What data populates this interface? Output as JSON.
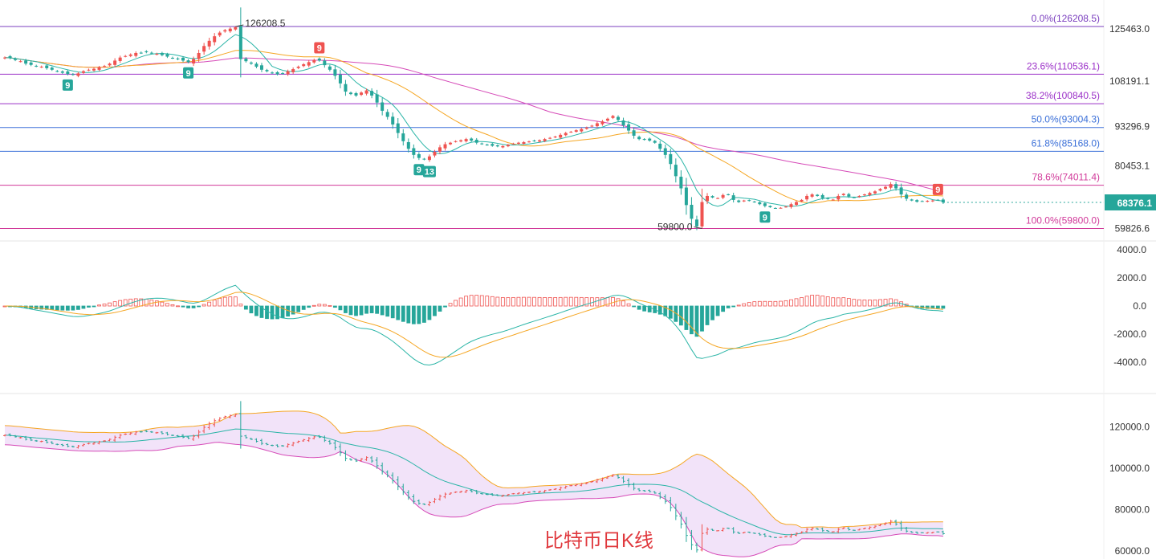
{
  "caption": "比特币日K线",
  "chart_data": [
    {
      "type": "candlestick",
      "panel": "main",
      "price_axis_ticks": [
        "125463.0",
        "108191.1",
        "93296.9",
        "80453.1",
        "59826.6"
      ],
      "price_axis_values": [
        125463.0,
        108191.1,
        93296.9,
        80453.1,
        59826.6
      ],
      "current_price": "68376.1",
      "current_price_value": 68376.1,
      "high_label": "126208.5",
      "high_value": 126208.5,
      "low_label": "59800.0",
      "low_value": 59800.0,
      "fib_levels": [
        {
          "label": "0.0%(126208.5)",
          "value": 126208.5,
          "color": "#7b3fbf"
        },
        {
          "label": "23.6%(110536.1)",
          "value": 110536.1,
          "color": "#9b30c8"
        },
        {
          "label": "38.2%(100840.5)",
          "value": 100840.5,
          "color": "#9b30c8"
        },
        {
          "label": "50.0%(93004.3)",
          "value": 93004.3,
          "color": "#3a6fd8"
        },
        {
          "label": "61.8%(85168.0)",
          "value": 85168.0,
          "color": "#3a6fd8"
        },
        {
          "label": "78.6%(74011.4)",
          "value": 74011.4,
          "color": "#d13a9a"
        },
        {
          "label": "100.0%(59800.0)",
          "value": 59800.0,
          "color": "#d13a9a"
        }
      ],
      "td_markers": [
        {
          "label": "9",
          "color": "#26a69a",
          "index": 12,
          "side": "below"
        },
        {
          "label": "9",
          "color": "#26a69a",
          "index": 35,
          "side": "below"
        },
        {
          "label": "9",
          "color": "#ef5350",
          "index": 60,
          "side": "above"
        },
        {
          "label": "9",
          "color": "#26a69a",
          "index": 79,
          "side": "below"
        },
        {
          "label": "13",
          "color": "#26a69a",
          "index": 81,
          "side": "below"
        },
        {
          "label": "9",
          "color": "#26a69a",
          "index": 145,
          "side": "below"
        },
        {
          "label": "9",
          "color": "#ef5350",
          "index": 178,
          "side": "above"
        }
      ],
      "closes": [
        116000,
        115800,
        115200,
        114800,
        114000,
        113600,
        113200,
        113000,
        112500,
        112000,
        111500,
        111000,
        110600,
        110400,
        110800,
        111500,
        112000,
        112300,
        112800,
        113200,
        114000,
        115000,
        116000,
        116500,
        117000,
        117500,
        117600,
        117800,
        117500,
        117200,
        116800,
        116300,
        115900,
        115500,
        115000,
        114500,
        115500,
        117500,
        119800,
        121500,
        123000,
        124200,
        125000,
        125500,
        126000,
        115500,
        114800,
        114000,
        113000,
        112000,
        111500,
        111000,
        110500,
        110800,
        111500,
        112200,
        113000,
        113800,
        114500,
        115200,
        115000,
        113500,
        112000,
        110000,
        107500,
        104800,
        104000,
        103500,
        104500,
        105200,
        103500,
        101200,
        98500,
        96500,
        94000,
        91200,
        88500,
        86000,
        84000,
        83000,
        82500,
        83500,
        85000,
        86500,
        87500,
        88000,
        88500,
        88800,
        89200,
        88700,
        88000,
        87600,
        87300,
        87000,
        86800,
        86900,
        87300,
        87700,
        88000,
        88200,
        88400,
        88600,
        88800,
        89200,
        89600,
        90000,
        90600,
        91200,
        91600,
        92100,
        92500,
        93000,
        93600,
        94400,
        95000,
        95900,
        96800,
        95500,
        93700,
        92000,
        90300,
        89200,
        89000,
        88700,
        88000,
        86000,
        84000,
        81000,
        77000,
        73000,
        67500,
        63000,
        60500,
        68500,
        70500,
        70000,
        69800,
        70800,
        70900,
        69200,
        68500,
        69000,
        68900,
        68500,
        67800,
        67200,
        66800,
        66500,
        66600,
        67000,
        67800,
        68500,
        69200,
        70500,
        71000,
        70500,
        69800,
        69500,
        69300,
        70500,
        71200,
        70300,
        70000,
        70500,
        71000,
        71500,
        72000,
        72800,
        73500,
        74400,
        73000,
        71000,
        69600,
        69000,
        68600,
        68800,
        68900,
        69000,
        69200,
        68376.1
      ]
    },
    {
      "type": "histogram",
      "panel": "macd",
      "axis_ticks": [
        "4000.0",
        "2000.0",
        "0.0",
        "-2000.0",
        "-4000.0"
      ],
      "axis_values": [
        4000,
        2000,
        0,
        -2000,
        -4000
      ]
    },
    {
      "type": "bollinger",
      "panel": "bollinger",
      "axis_ticks": [
        "120000.0",
        "100000.0",
        "80000.0",
        "60000.0"
      ],
      "axis_values": [
        120000,
        100000,
        80000,
        60000
      ]
    }
  ],
  "colors": {
    "up": "#ef5350",
    "down": "#26a69a",
    "ma_short": "#2bb5a7",
    "ma_mid": "#f5a623",
    "ma_long": "#d64bb8",
    "band_fill": "#efdcf7",
    "price_tag": "#26a69a"
  }
}
